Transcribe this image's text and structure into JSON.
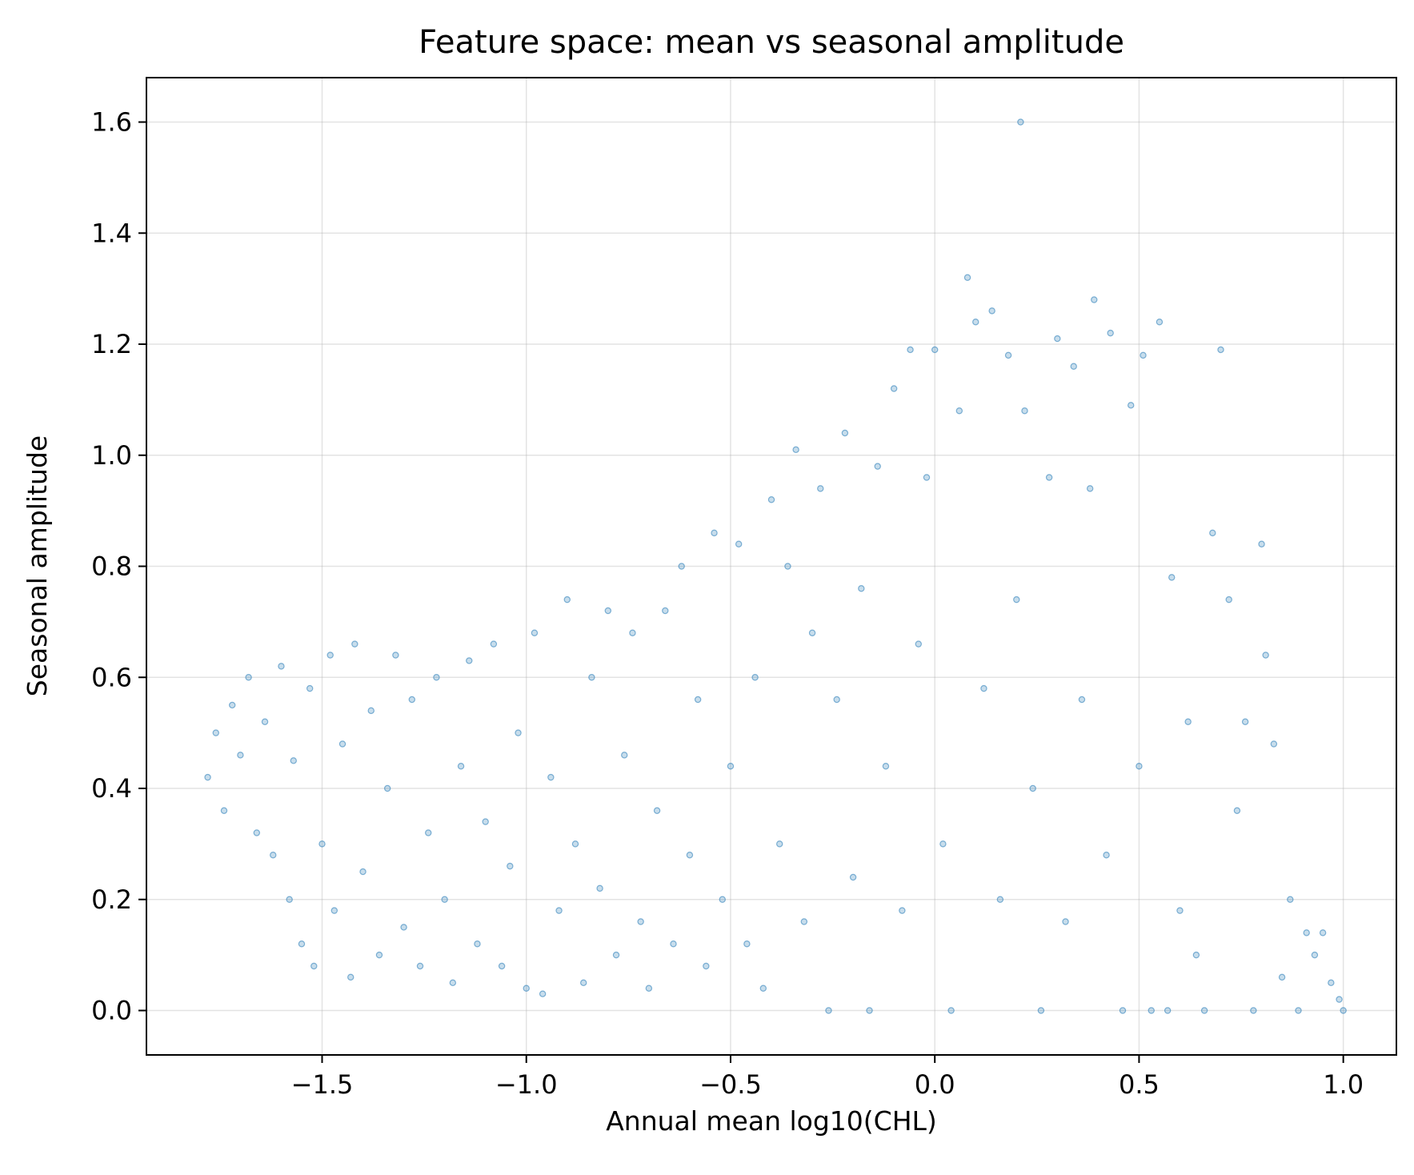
{
  "chart_data": {
    "type": "scatter",
    "title": "Feature space: mean vs seasonal amplitude",
    "xlabel": "Annual mean log10(CHL)",
    "ylabel": "Seasonal amplitude",
    "xlim": [
      -1.93,
      1.13
    ],
    "ylim": [
      -0.08,
      1.68
    ],
    "xticks": [
      -1.5,
      -1.0,
      -0.5,
      0.0,
      0.5,
      1.0
    ],
    "xtick_labels": [
      "−1.5",
      "−1.0",
      "−0.5",
      "0.0",
      "0.5",
      "1.0"
    ],
    "yticks": [
      0.0,
      0.2,
      0.4,
      0.6,
      0.8,
      1.0,
      1.2,
      1.4,
      1.6
    ],
    "ytick_labels": [
      "0.0",
      "0.2",
      "0.4",
      "0.6",
      "0.8",
      "1.0",
      "1.2",
      "1.4",
      "1.6"
    ],
    "grid": true,
    "marker_color": "#1f77b4",
    "points": [
      [
        -1.78,
        0.42
      ],
      [
        -1.76,
        0.5
      ],
      [
        -1.74,
        0.36
      ],
      [
        -1.72,
        0.55
      ],
      [
        -1.7,
        0.46
      ],
      [
        -1.68,
        0.6
      ],
      [
        -1.66,
        0.32
      ],
      [
        -1.64,
        0.52
      ],
      [
        -1.62,
        0.28
      ],
      [
        -1.6,
        0.62
      ],
      [
        -1.58,
        0.2
      ],
      [
        -1.57,
        0.45
      ],
      [
        -1.55,
        0.12
      ],
      [
        -1.53,
        0.58
      ],
      [
        -1.52,
        0.08
      ],
      [
        -1.5,
        0.3
      ],
      [
        -1.48,
        0.64
      ],
      [
        -1.47,
        0.18
      ],
      [
        -1.45,
        0.48
      ],
      [
        -1.43,
        0.06
      ],
      [
        -1.42,
        0.66
      ],
      [
        -1.4,
        0.25
      ],
      [
        -1.38,
        0.54
      ],
      [
        -1.36,
        0.1
      ],
      [
        -1.34,
        0.4
      ],
      [
        -1.32,
        0.64
      ],
      [
        -1.3,
        0.15
      ],
      [
        -1.28,
        0.56
      ],
      [
        -1.26,
        0.08
      ],
      [
        -1.24,
        0.32
      ],
      [
        -1.22,
        0.6
      ],
      [
        -1.2,
        0.2
      ],
      [
        -1.18,
        0.05
      ],
      [
        -1.16,
        0.44
      ],
      [
        -1.14,
        0.63
      ],
      [
        -1.12,
        0.12
      ],
      [
        -1.1,
        0.34
      ],
      [
        -1.08,
        0.66
      ],
      [
        -1.06,
        0.08
      ],
      [
        -1.04,
        0.26
      ],
      [
        -1.02,
        0.5
      ],
      [
        -1.0,
        0.04
      ],
      [
        -0.98,
        0.68
      ],
      [
        -0.96,
        0.03
      ],
      [
        -0.94,
        0.42
      ],
      [
        -0.92,
        0.18
      ],
      [
        -0.9,
        0.74
      ],
      [
        -0.88,
        0.3
      ],
      [
        -0.86,
        0.05
      ],
      [
        -0.84,
        0.6
      ],
      [
        -0.82,
        0.22
      ],
      [
        -0.8,
        0.72
      ],
      [
        -0.78,
        0.1
      ],
      [
        -0.76,
        0.46
      ],
      [
        -0.74,
        0.68
      ],
      [
        -0.72,
        0.16
      ],
      [
        -0.7,
        0.04
      ],
      [
        -0.68,
        0.36
      ],
      [
        -0.66,
        0.72
      ],
      [
        -0.64,
        0.12
      ],
      [
        -0.62,
        0.8
      ],
      [
        -0.6,
        0.28
      ],
      [
        -0.58,
        0.56
      ],
      [
        -0.56,
        0.08
      ],
      [
        -0.54,
        0.86
      ],
      [
        -0.52,
        0.2
      ],
      [
        -0.5,
        0.44
      ],
      [
        -0.48,
        0.84
      ],
      [
        -0.46,
        0.12
      ],
      [
        -0.44,
        0.6
      ],
      [
        -0.42,
        0.04
      ],
      [
        -0.4,
        0.92
      ],
      [
        -0.38,
        0.3
      ],
      [
        -0.36,
        0.8
      ],
      [
        -0.34,
        1.01
      ],
      [
        -0.32,
        0.16
      ],
      [
        -0.3,
        0.68
      ],
      [
        -0.28,
        0.94
      ],
      [
        -0.26,
        0.0
      ],
      [
        -0.24,
        0.56
      ],
      [
        -0.22,
        1.04
      ],
      [
        -0.2,
        0.24
      ],
      [
        -0.18,
        0.76
      ],
      [
        -0.16,
        0.0
      ],
      [
        -0.14,
        0.98
      ],
      [
        -0.12,
        0.44
      ],
      [
        -0.1,
        1.12
      ],
      [
        -0.08,
        0.18
      ],
      [
        -0.06,
        1.19
      ],
      [
        -0.04,
        0.66
      ],
      [
        -0.02,
        0.96
      ],
      [
        0.0,
        1.19
      ],
      [
        0.02,
        0.3
      ],
      [
        0.04,
        0.0
      ],
      [
        0.06,
        1.08
      ],
      [
        0.08,
        1.32
      ],
      [
        0.1,
        1.24
      ],
      [
        0.12,
        0.58
      ],
      [
        0.14,
        1.26
      ],
      [
        0.16,
        0.2
      ],
      [
        0.18,
        1.18
      ],
      [
        0.2,
        0.74
      ],
      [
        0.21,
        1.6
      ],
      [
        0.22,
        1.08
      ],
      [
        0.24,
        0.4
      ],
      [
        0.26,
        0.0
      ],
      [
        0.28,
        0.96
      ],
      [
        0.3,
        1.21
      ],
      [
        0.32,
        0.16
      ],
      [
        0.34,
        1.16
      ],
      [
        0.36,
        0.56
      ],
      [
        0.38,
        0.94
      ],
      [
        0.39,
        1.28
      ],
      [
        0.42,
        0.28
      ],
      [
        0.43,
        1.22
      ],
      [
        0.46,
        0.0
      ],
      [
        0.48,
        1.09
      ],
      [
        0.5,
        0.44
      ],
      [
        0.51,
        1.18
      ],
      [
        0.53,
        0.0
      ],
      [
        0.55,
        1.24
      ],
      [
        0.57,
        0.0
      ],
      [
        0.58,
        0.78
      ],
      [
        0.6,
        0.18
      ],
      [
        0.62,
        0.52
      ],
      [
        0.64,
        0.1
      ],
      [
        0.66,
        0.0
      ],
      [
        0.68,
        0.86
      ],
      [
        0.7,
        1.19
      ],
      [
        0.72,
        0.74
      ],
      [
        0.74,
        0.36
      ],
      [
        0.76,
        0.52
      ],
      [
        0.78,
        0.0
      ],
      [
        0.8,
        0.84
      ],
      [
        0.81,
        0.64
      ],
      [
        0.83,
        0.48
      ],
      [
        0.85,
        0.06
      ],
      [
        0.87,
        0.2
      ],
      [
        0.89,
        0.0
      ],
      [
        0.91,
        0.14
      ],
      [
        0.93,
        0.1
      ],
      [
        0.95,
        0.14
      ],
      [
        0.97,
        0.05
      ],
      [
        0.99,
        0.02
      ],
      [
        1.0,
        0.0
      ]
    ]
  }
}
